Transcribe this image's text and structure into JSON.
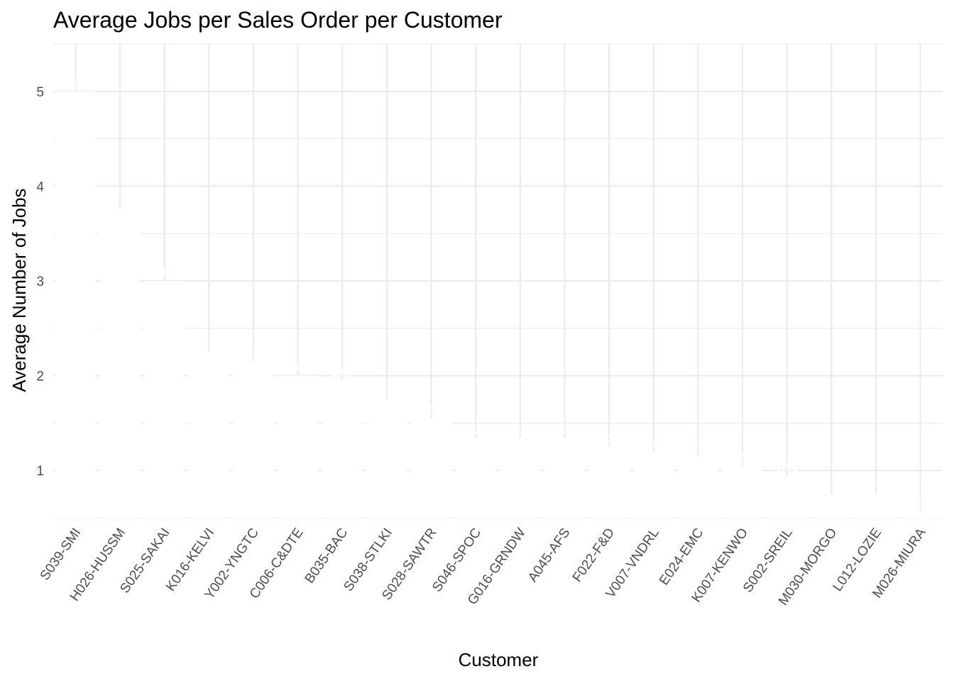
{
  "chart_data": {
    "type": "bar",
    "title": "Average Jobs per Sales Order per Customer",
    "xlabel": "Customer",
    "ylabel": "Average Number of Jobs",
    "categories": [
      "S039-SMI",
      "H026-HUSSM",
      "S025-SAKAI",
      "K016-KELVI",
      "Y002-YNGTC",
      "C006-C&DTE",
      "B035-BAC",
      "S038-STLKI",
      "S028-SAWTR",
      "S046-SPOC",
      "G016-GRNDW",
      "A045-AFS",
      "F022-F&D",
      "V007-VNDRL",
      "E024-EMC",
      "K007-KENWO",
      "S002-SREIL",
      "M030-MORGO",
      "L012-LOZIE",
      "M026-MIURA"
    ],
    "values": [
      5.0,
      3.75,
      3.0,
      2.25,
      2.15,
      2.0,
      1.95,
      1.75,
      1.55,
      1.35,
      1.35,
      1.35,
      1.25,
      1.2,
      1.15,
      1.05,
      0.95,
      0.75,
      0.75,
      0.55
    ],
    "data_labels": [
      "5.00",
      "3.75",
      "3.00",
      "2.25",
      "2.15",
      "2.00",
      "1.95",
      "1.75",
      "1.55",
      "1.35",
      "1.35",
      "1.35",
      "1.25",
      "1.20",
      "1.15",
      "1.05",
      "0.95",
      "0.75",
      "0.75",
      "0.55"
    ],
    "bar_color": "#ffffff",
    "yticks": [
      1,
      2,
      3,
      4,
      5
    ],
    "ylim": [
      0.5,
      5.5
    ],
    "grid": true,
    "legend": "none"
  }
}
